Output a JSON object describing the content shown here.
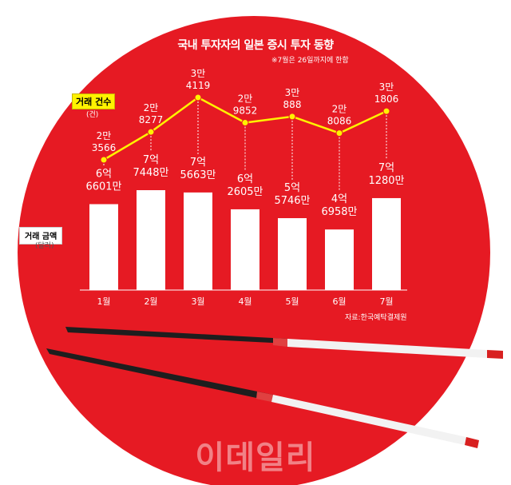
{
  "title": "국내 투자자의 일본 증시 투자 동향",
  "note": "※7월은 26일까지에 한함",
  "source": "자료:한국예탁결제원",
  "watermark": "이데일리",
  "colors": {
    "red": "#e61a23",
    "line": "#fff200",
    "bar": "#ffffff"
  },
  "chart_data": {
    "type": "bar",
    "categories": [
      "1월",
      "2월",
      "3월",
      "4월",
      "5월",
      "6월",
      "7월"
    ],
    "series": [
      {
        "name": "거래 금액",
        "unit": "(달러)",
        "type": "bar",
        "values": [
          666010000,
          774480000,
          756630000,
          626050000,
          557460000,
          469580000,
          712800000
        ],
        "labels": [
          [
            "6억",
            "6601만"
          ],
          [
            "7억",
            "7448만"
          ],
          [
            "7억",
            "5663만"
          ],
          [
            "6억",
            "2605만"
          ],
          [
            "5억",
            "5746만"
          ],
          [
            "4억",
            "6958만"
          ],
          [
            "7억",
            "1280만"
          ]
        ]
      },
      {
        "name": "거래 건수",
        "unit": "(건)",
        "type": "line",
        "values": [
          23566,
          28277,
          34119,
          29852,
          30888,
          28086,
          31806
        ],
        "labels": [
          [
            "2만",
            "3566"
          ],
          [
            "2만",
            "8277"
          ],
          [
            "3만",
            "4119"
          ],
          [
            "2만",
            "9852"
          ],
          [
            "3만",
            "888"
          ],
          [
            "2만",
            "8086"
          ],
          [
            "3만",
            "1806"
          ]
        ]
      }
    ]
  }
}
